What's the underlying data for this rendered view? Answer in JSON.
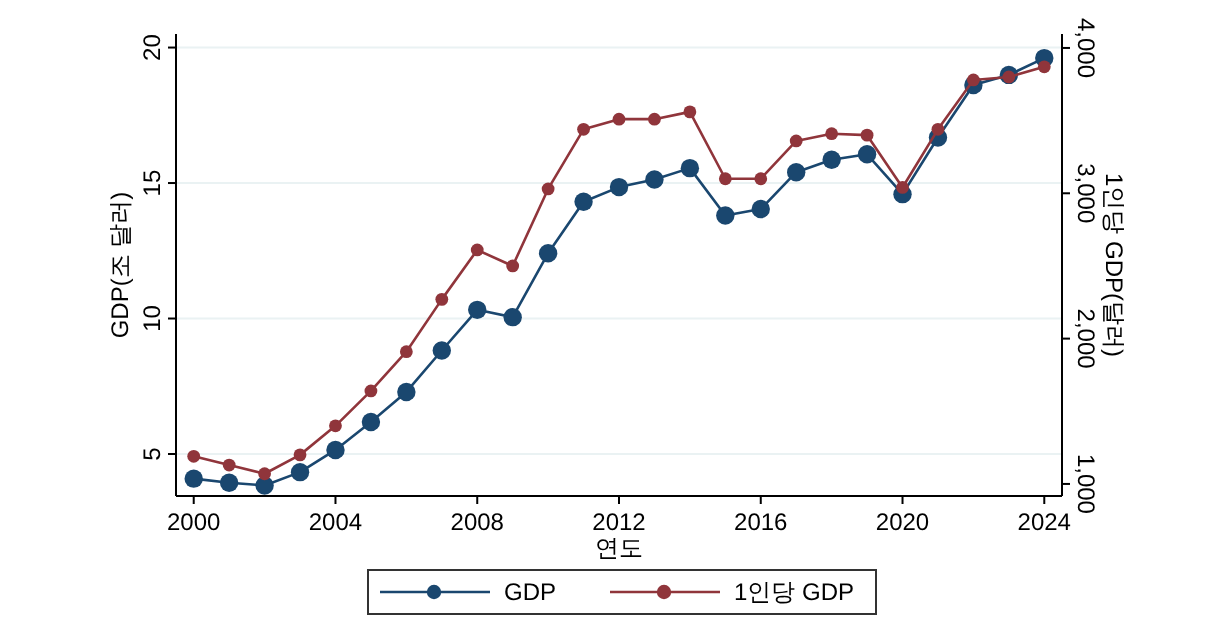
{
  "chart_data": {
    "type": "line",
    "xlabel": "연도",
    "ylabel": "GDP(조 달러)",
    "y2label": "1인당 GDP(달러)",
    "x": [
      2000,
      2001,
      2002,
      2003,
      2004,
      2005,
      2006,
      2007,
      2008,
      2009,
      2010,
      2011,
      2012,
      2013,
      2014,
      2015,
      2016,
      2017,
      2018,
      2019,
      2020,
      2021,
      2022,
      2023,
      2024
    ],
    "series": [
      {
        "name": "GDP",
        "color": "#1a476f",
        "values": [
          4.09,
          3.94,
          3.84,
          4.33,
          5.15,
          6.18,
          7.29,
          8.82,
          10.32,
          10.05,
          12.41,
          14.31,
          14.85,
          15.13,
          15.55,
          13.8,
          14.04,
          15.4,
          15.86,
          16.06,
          14.59,
          16.68,
          18.62,
          18.99,
          19.61
        ]
      },
      {
        "name": "1인당 GDP",
        "color": "#90353b",
        "axis": "y2",
        "values": [
          1190,
          1130,
          1070,
          1200,
          1400,
          1640,
          1910,
          2270,
          2610,
          2500,
          3030,
          3440,
          3510,
          3510,
          3560,
          3100,
          3100,
          3360,
          3410,
          3400,
          3040,
          3440,
          3780,
          3800,
          3870
        ]
      }
    ],
    "xlim": [
      1999.5,
      2024.5
    ],
    "xticks": [
      2000,
      2004,
      2008,
      2012,
      2016,
      2020,
      2024
    ],
    "ylim": [
      3.45,
      20.5
    ],
    "yticks": [
      5,
      10,
      15,
      20
    ],
    "y2lim": [
      917,
      4096
    ],
    "y2ticks": [
      {
        "value": 1000,
        "label": "1,000"
      },
      {
        "value": 2000,
        "label": "2,000"
      },
      {
        "value": 3000,
        "label": "3,000"
      },
      {
        "value": 4000,
        "label": "4,000"
      }
    ],
    "grid": "y",
    "legend": "bottom",
    "marker": "circle",
    "line_style": "solid"
  }
}
